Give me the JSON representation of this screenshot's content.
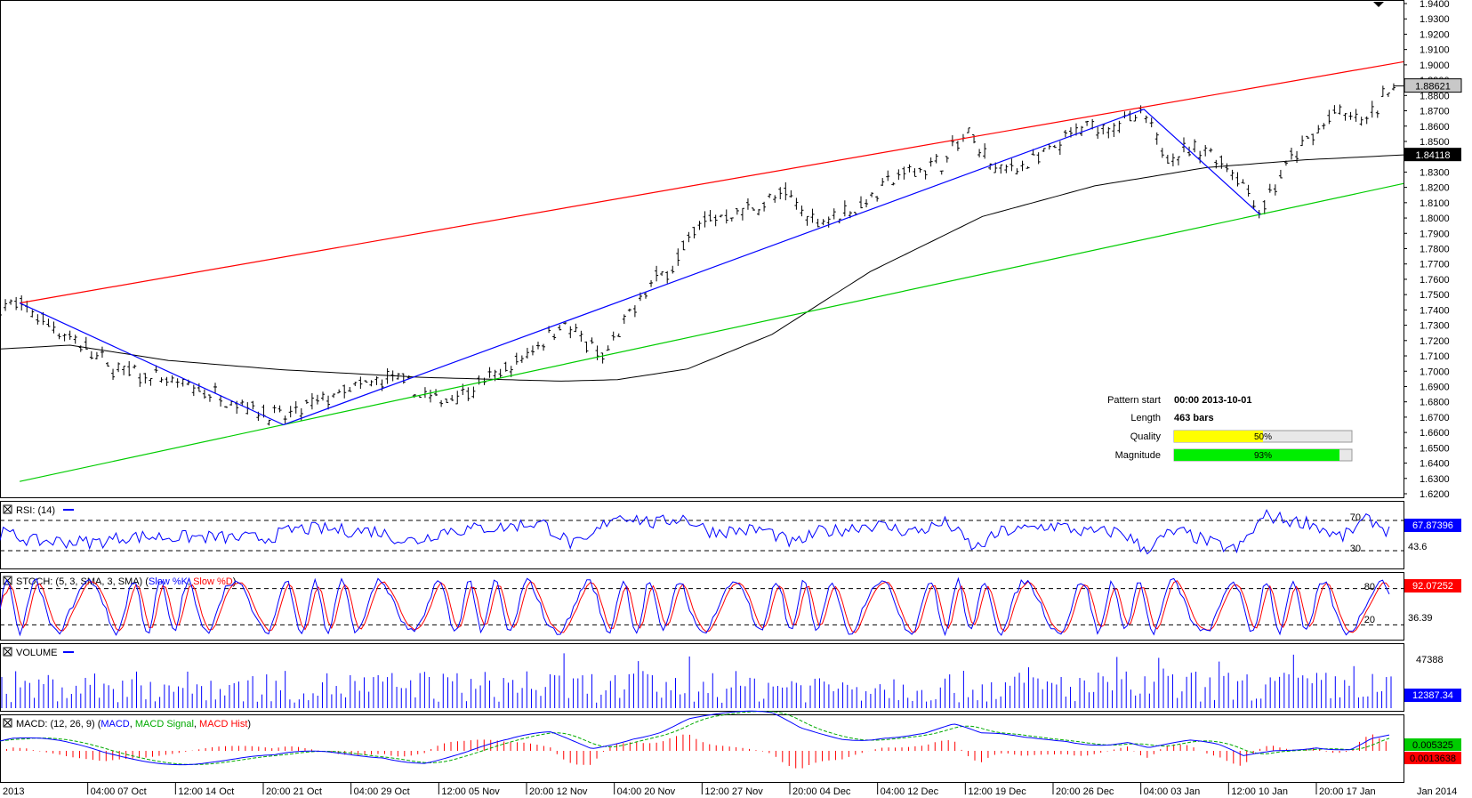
{
  "chart_data": {
    "type": "candlestick",
    "instrument_last": "1.88621",
    "ma_last": "1.84118",
    "price_axis": {
      "min": 1.62,
      "max": 1.94,
      "ticks": [
        "1.9400",
        "1.9300",
        "1.9200",
        "1.9100",
        "1.9000",
        "1.8900",
        "1.8800",
        "1.8700",
        "1.8600",
        "1.8500",
        "1.8400",
        "1.8300",
        "1.8200",
        "1.8100",
        "1.8000",
        "1.7900",
        "1.7800",
        "1.7700",
        "1.7600",
        "1.7500",
        "1.7400",
        "1.7300",
        "1.7200",
        "1.7100",
        "1.7000",
        "1.6900",
        "1.6800",
        "1.6700",
        "1.6600",
        "1.6500",
        "1.6400",
        "1.6300",
        "1.6200"
      ]
    },
    "time_axis": [
      "2013",
      "04:00 07 Oct",
      "12:00 14 Oct",
      "20:00 21 Oct",
      "04:00 29 Oct",
      "12:00 05 Nov",
      "20:00 12 Nov",
      "04:00 20 Nov",
      "12:00 27 Nov",
      "20:00 04 Dec",
      "04:00 12 Dec",
      "12:00 19 Dec",
      "20:00 26 Dec",
      "04:00 03 Jan",
      "12:00 10 Jan",
      "20:00 17 Jan",
      "Jan 2014"
    ],
    "pattern_lines": {
      "resistance": {
        "from": [
          0.014,
          1.7445
        ],
        "to": [
          1.0,
          1.902
        ],
        "color": "#ff0000"
      },
      "support": {
        "from": [
          0.014,
          1.628
        ],
        "to": [
          1.0,
          1.8225
        ],
        "color": "#00cc00"
      },
      "swing_path": [
        [
          0.014,
          1.7445
        ],
        [
          0.202,
          1.665
        ],
        [
          0.815,
          1.871
        ],
        [
          0.898,
          1.802
        ]
      ]
    },
    "price_anchors": [
      [
        0.0,
        1.742
      ],
      [
        0.014,
        1.743
      ],
      [
        0.05,
        1.722
      ],
      [
        0.08,
        1.702
      ],
      [
        0.12,
        1.693
      ],
      [
        0.16,
        1.683
      ],
      [
        0.202,
        1.669
      ],
      [
        0.24,
        1.685
      ],
      [
        0.28,
        1.696
      ],
      [
        0.31,
        1.68
      ],
      [
        0.34,
        1.69
      ],
      [
        0.37,
        1.706
      ],
      [
        0.4,
        1.732
      ],
      [
        0.43,
        1.708
      ],
      [
        0.46,
        1.753
      ],
      [
        0.48,
        1.77
      ],
      [
        0.5,
        1.798
      ],
      [
        0.53,
        1.805
      ],
      [
        0.56,
        1.815
      ],
      [
        0.58,
        1.798
      ],
      [
        0.61,
        1.806
      ],
      [
        0.64,
        1.828
      ],
      [
        0.67,
        1.836
      ],
      [
        0.69,
        1.855
      ],
      [
        0.71,
        1.83
      ],
      [
        0.74,
        1.838
      ],
      [
        0.77,
        1.858
      ],
      [
        0.8,
        1.862
      ],
      [
        0.815,
        1.866
      ],
      [
        0.83,
        1.842
      ],
      [
        0.86,
        1.845
      ],
      [
        0.88,
        1.83
      ],
      [
        0.898,
        1.805
      ],
      [
        0.92,
        1.838
      ],
      [
        0.95,
        1.868
      ],
      [
        0.975,
        1.863
      ],
      [
        0.99,
        1.886
      ]
    ],
    "ma_anchors": [
      [
        0.0,
        1.7145
      ],
      [
        0.05,
        1.717
      ],
      [
        0.12,
        1.707
      ],
      [
        0.2,
        1.701
      ],
      [
        0.3,
        1.696
      ],
      [
        0.4,
        1.6935
      ],
      [
        0.44,
        1.6945
      ],
      [
        0.49,
        1.7015
      ],
      [
        0.55,
        1.724
      ],
      [
        0.62,
        1.765
      ],
      [
        0.7,
        1.801
      ],
      [
        0.78,
        1.821
      ],
      [
        0.86,
        1.833
      ],
      [
        0.93,
        1.838
      ],
      [
        1.0,
        1.8412
      ]
    ],
    "info_panel": {
      "pattern_start_label": "Pattern start",
      "pattern_start_value": "00:00 2013-10-01",
      "length_label": "Length",
      "length_value": "463 bars",
      "quality_label": "Quality",
      "quality_value": 50,
      "quality_text": "50%",
      "magnitude_label": "Magnitude",
      "magnitude_value": 93,
      "magnitude_text": "93%"
    },
    "indicators": {
      "rsi": {
        "title": "RSI: (14)",
        "upper": 70,
        "lower": 30,
        "upper_label": "70",
        "lower_label": "30",
        "extra_label": "43.6",
        "last": "67.87396"
      },
      "stoch": {
        "title": "STOCH: (5, 3, SMA, 3, SMA) (",
        "k_label": "Slow %K",
        "sep": ", ",
        "d_label": "Slow %D",
        "close": ")",
        "upper_label": "80",
        "lower_label": "20",
        "extra_label": "36.39",
        "last": "92.07252"
      },
      "volume": {
        "title": "VOLUME",
        "label_top": "47388",
        "last": "12387.34"
      },
      "macd": {
        "title": "MACD: (12, 26, 9) (",
        "macd_label": "MACD",
        "signal_label": "MACD Signal",
        "hist_label": "MACD Hist",
        "close": ")",
        "macd_last": "0.005325",
        "hist_last": "0.0013638"
      }
    },
    "colors": {
      "resistance": "#ff0000",
      "support": "#00cc00",
      "swing": "#0000ff",
      "ma": "#000000",
      "rsi": "#0000ff",
      "stoch_k": "#0000ff",
      "stoch_d": "#ff0000",
      "volume": "#0000ff",
      "macd": "#0000ff",
      "signal": "#00aa00",
      "hist": "#ff0000",
      "quality": "#ffff00",
      "magnitude": "#00ee00"
    }
  }
}
